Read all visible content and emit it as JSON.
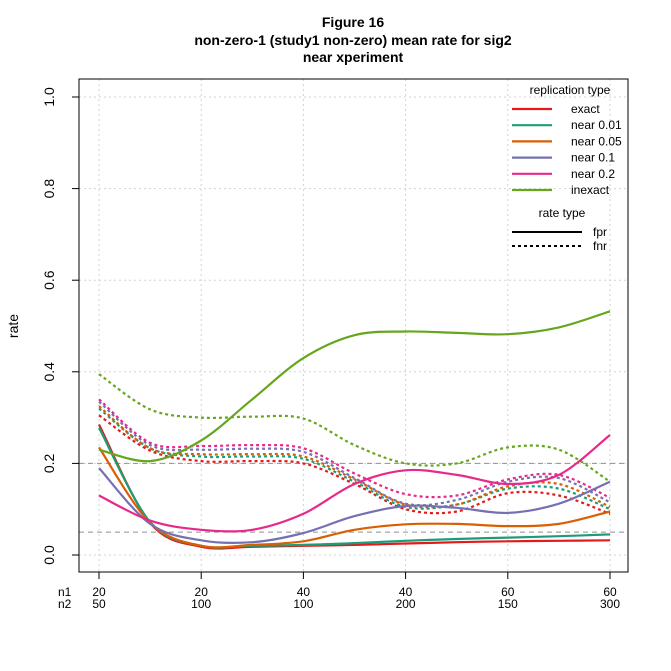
{
  "chart_data": {
    "type": "line",
    "title": "Figure 16",
    "subtitle_lines": [
      "non-zero-1 (study1 non-zero) mean rate for sig2",
      "near xperiment"
    ],
    "ylabel": "rate",
    "xlabel": "",
    "ylim": [
      0,
      1
    ],
    "y_ticks": [
      "0.0",
      "0.2",
      "0.4",
      "0.6",
      "0.8",
      "1.0"
    ],
    "y_tick_values": [
      0,
      0.2,
      0.4,
      0.6,
      0.8,
      1.0
    ],
    "x_ticks": [
      {
        "n1": "20",
        "n2": "50"
      },
      {
        "n1": "20",
        "n2": "100"
      },
      {
        "n1": "40",
        "n2": "100"
      },
      {
        "n1": "40",
        "n2": "200"
      },
      {
        "n1": "60",
        "n2": "150"
      },
      {
        "n1": "60",
        "n2": "300"
      }
    ],
    "x_row_labels": [
      "n1",
      "n2"
    ],
    "reference_lines": [
      0.2,
      0.05
    ],
    "grid": true,
    "legend_position": "top-right",
    "legend_replication_title": "replication type",
    "legend_rate_title": "rate type",
    "replication_types": [
      {
        "name": "exact",
        "color": "#E41A1C"
      },
      {
        "name": "near 0.01",
        "color": "#1B9E77"
      },
      {
        "name": "near 0.05",
        "color": "#D95F02"
      },
      {
        "name": "near 0.1",
        "color": "#7570B3"
      },
      {
        "name": "near 0.2",
        "color": "#E7298A"
      },
      {
        "name": "inexact",
        "color": "#66A61E"
      }
    ],
    "rate_types": [
      {
        "name": "fpr",
        "dash": "solid"
      },
      {
        "name": "fnr",
        "dash": "dotted"
      }
    ],
    "x_positions": [
      1,
      1.5,
      2,
      2.5,
      3,
      3.5,
      4,
      4.5,
      5,
      5.5,
      6
    ],
    "series": [
      {
        "name": "exact",
        "rate": "fpr",
        "values": [
          0.285,
          0.07,
          0.018,
          0.018,
          0.02,
          0.022,
          0.025,
          0.028,
          0.03,
          0.031,
          0.032
        ]
      },
      {
        "name": "near 0.01",
        "rate": "fpr",
        "values": [
          0.278,
          0.072,
          0.02,
          0.02,
          0.022,
          0.026,
          0.031,
          0.035,
          0.038,
          0.041,
          0.045
        ]
      },
      {
        "name": "near 0.05",
        "rate": "fpr",
        "values": [
          0.235,
          0.07,
          0.02,
          0.022,
          0.03,
          0.055,
          0.067,
          0.068,
          0.063,
          0.068,
          0.095
        ]
      },
      {
        "name": "near 0.1",
        "rate": "fpr",
        "values": [
          0.19,
          0.068,
          0.032,
          0.028,
          0.048,
          0.085,
          0.107,
          0.103,
          0.092,
          0.112,
          0.16
        ]
      },
      {
        "name": "near 0.2",
        "rate": "fpr",
        "values": [
          0.13,
          0.075,
          0.055,
          0.055,
          0.09,
          0.155,
          0.185,
          0.175,
          0.155,
          0.175,
          0.262
        ]
      },
      {
        "name": "inexact",
        "rate": "fpr",
        "values": [
          0.23,
          0.205,
          0.25,
          0.34,
          0.43,
          0.48,
          0.488,
          0.485,
          0.482,
          0.497,
          0.532
        ]
      },
      {
        "name": "exact",
        "rate": "fnr",
        "values": [
          0.305,
          0.228,
          0.205,
          0.205,
          0.2,
          0.155,
          0.1,
          0.095,
          0.135,
          0.13,
          0.09
        ]
      },
      {
        "name": "near 0.01",
        "rate": "fnr",
        "values": [
          0.32,
          0.233,
          0.215,
          0.215,
          0.21,
          0.16,
          0.105,
          0.11,
          0.145,
          0.145,
          0.1
        ]
      },
      {
        "name": "near 0.05",
        "rate": "fnr",
        "values": [
          0.325,
          0.233,
          0.22,
          0.22,
          0.215,
          0.165,
          0.11,
          0.11,
          0.15,
          0.155,
          0.105
        ]
      },
      {
        "name": "near 0.1",
        "rate": "fnr",
        "values": [
          0.335,
          0.24,
          0.23,
          0.232,
          0.225,
          0.168,
          0.112,
          0.12,
          0.16,
          0.168,
          0.115
        ]
      },
      {
        "name": "near 0.2",
        "rate": "fnr",
        "values": [
          0.34,
          0.245,
          0.238,
          0.24,
          0.233,
          0.178,
          0.133,
          0.13,
          0.165,
          0.175,
          0.125
        ]
      },
      {
        "name": "inexact",
        "rate": "fnr",
        "values": [
          0.395,
          0.318,
          0.3,
          0.302,
          0.298,
          0.24,
          0.2,
          0.2,
          0.235,
          0.23,
          0.16
        ]
      }
    ]
  }
}
